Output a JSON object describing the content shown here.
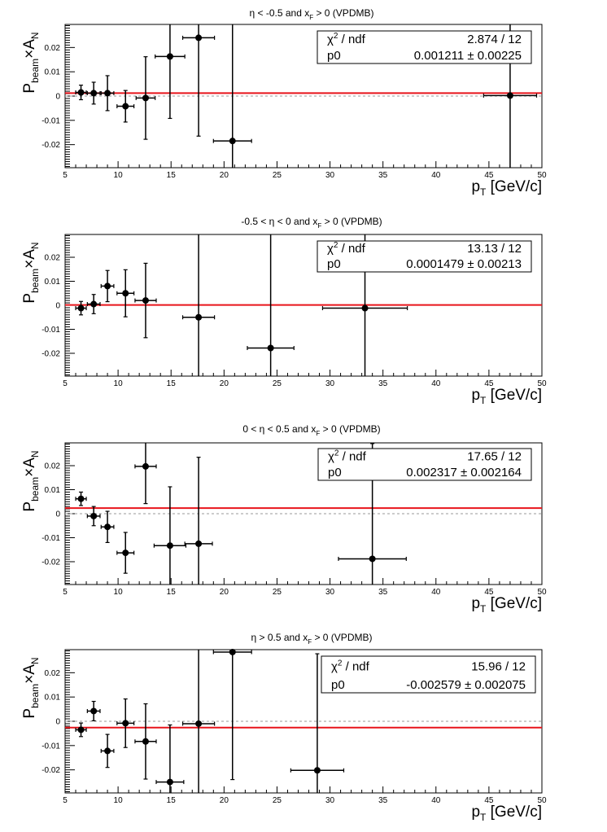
{
  "chart_data": [
    {
      "type": "scatter",
      "title": "η < -0.5 and x_F > 0 (VPDMB)",
      "title_parts": {
        "pre": "η < -0.5 and x",
        "sub": "F",
        "post": " > 0 (VPDMB)"
      },
      "xlabel": {
        "main": "p",
        "sub": "T",
        "unit": " [GeV/c]"
      },
      "ylabel": {
        "p1": "P",
        "s1": "beam",
        "p2": "×A",
        "s2": "N"
      },
      "xlim": [
        5,
        50
      ],
      "ylim": [
        -0.0295,
        0.0295
      ],
      "xticks": [
        5,
        10,
        15,
        20,
        25,
        30,
        35,
        40,
        45,
        50
      ],
      "xtick_labels": [
        "5",
        "10",
        "15",
        "20",
        "25",
        "30",
        "35",
        "40",
        "45",
        "50"
      ],
      "yticks": [
        -0.02,
        -0.01,
        0,
        0.01,
        0.02
      ],
      "ytick_labels": [
        "-0.02",
        "-0.01",
        "0",
        "0.01",
        "0.02"
      ],
      "points": [
        {
          "x": 6.5,
          "y": 0.0015,
          "xerr": 0.5,
          "yerr": 0.003
        },
        {
          "x": 7.7,
          "y": 0.0012,
          "xerr": 0.6,
          "yerr": 0.0045
        },
        {
          "x": 9.0,
          "y": 0.0012,
          "xerr": 0.6,
          "yerr": 0.0072
        },
        {
          "x": 10.7,
          "y": -0.0042,
          "xerr": 0.8,
          "yerr": 0.0065
        },
        {
          "x": 12.6,
          "y": -0.0008,
          "xerr": 0.9,
          "yerr": 0.017
        },
        {
          "x": 14.9,
          "y": 0.0163,
          "xerr": 1.4,
          "yerr": 0.0255
        },
        {
          "x": 17.6,
          "y": 0.024,
          "xerr": 1.5,
          "yerr": 0.0405
        },
        {
          "x": 20.8,
          "y": -0.0185,
          "xerr": 1.8,
          "yerr": 0.048
        },
        {
          "x": 47.0,
          "y": 0.0002,
          "xerr": 2.5,
          "yerr": 0.048
        }
      ],
      "fit_value": 0.001211,
      "stats": {
        "chi_label": "χ",
        "chi_sup": "2",
        "ndf_label": " / ndf",
        "chi_value": "2.874 / 12",
        "p_label": "p0",
        "p_value": "0.001211 ± 0.00225"
      },
      "line_color": "#e8141b",
      "zero_line_color": "#9a9a9a",
      "stat_box_position": "top-right"
    },
    {
      "type": "scatter",
      "title": "-0.5 < η < 0 and x_F > 0 (VPDMB)",
      "title_parts": {
        "pre": "-0.5 < η < 0 and x",
        "sub": "F",
        "post": " > 0 (VPDMB)"
      },
      "xlabel": {
        "main": "p",
        "sub": "T",
        "unit": " [GeV/c]"
      },
      "ylabel": {
        "p1": "P",
        "s1": "beam",
        "p2": "×A",
        "s2": "N"
      },
      "xlim": [
        5,
        50
      ],
      "ylim": [
        -0.0295,
        0.0295
      ],
      "xticks": [
        5,
        10,
        15,
        20,
        25,
        30,
        35,
        40,
        45,
        50
      ],
      "xtick_labels": [
        "5",
        "10",
        "15",
        "20",
        "25",
        "30",
        "35",
        "40",
        "45",
        "50"
      ],
      "yticks": [
        -0.02,
        -0.01,
        0,
        0.01,
        0.02
      ],
      "ytick_labels": [
        "-0.02",
        "-0.01",
        "0",
        "0.01",
        "0.02"
      ],
      "points": [
        {
          "x": 6.5,
          "y": -0.0012,
          "xerr": 0.5,
          "yerr": 0.0028
        },
        {
          "x": 7.7,
          "y": 0.0005,
          "xerr": 0.6,
          "yerr": 0.004
        },
        {
          "x": 9.0,
          "y": 0.008,
          "xerr": 0.6,
          "yerr": 0.0065
        },
        {
          "x": 10.7,
          "y": 0.005,
          "xerr": 0.8,
          "yerr": 0.0098
        },
        {
          "x": 12.6,
          "y": 0.002,
          "xerr": 1.0,
          "yerr": 0.0155
        },
        {
          "x": 17.6,
          "y": -0.005,
          "xerr": 1.5,
          "yerr": 0.048
        },
        {
          "x": 24.4,
          "y": -0.0178,
          "xerr": 2.2,
          "yerr": 0.048
        },
        {
          "x": 33.3,
          "y": -0.0012,
          "xerr": 4.0,
          "yerr": 0.048
        }
      ],
      "fit_value": 0.0001479,
      "stats": {
        "chi_label": "χ",
        "chi_sup": "2",
        "ndf_label": " / ndf",
        "chi_value": "13.13 / 12",
        "p_label": "p0",
        "p_value": "0.0001479 ± 0.00213"
      },
      "line_color": "#e8141b",
      "zero_line_color": "#9a9a9a",
      "stat_box_position": "top-right"
    },
    {
      "type": "scatter",
      "title": "0 < η < 0.5 and x_F > 0 (VPDMB)",
      "title_parts": {
        "pre": "0 < η < 0.5 and x",
        "sub": "F",
        "post": " > 0 (VPDMB)"
      },
      "xlabel": {
        "main": "p",
        "sub": "T",
        "unit": " [GeV/c]"
      },
      "ylabel": {
        "p1": "P",
        "s1": "beam",
        "p2": "×A",
        "s2": "N"
      },
      "xlim": [
        5,
        50
      ],
      "ylim": [
        -0.0295,
        0.0295
      ],
      "xticks": [
        5,
        10,
        15,
        20,
        25,
        30,
        35,
        40,
        45,
        50
      ],
      "xtick_labels": [
        "5",
        "10",
        "15",
        "20",
        "25",
        "30",
        "35",
        "40",
        "45",
        "50"
      ],
      "yticks": [
        -0.02,
        -0.01,
        0,
        0.01,
        0.02
      ],
      "ytick_labels": [
        "-0.02",
        "-0.01",
        "0",
        "0.01",
        "0.02"
      ],
      "points": [
        {
          "x": 6.5,
          "y": 0.0062,
          "xerr": 0.5,
          "yerr": 0.0028
        },
        {
          "x": 7.7,
          "y": -0.001,
          "xerr": 0.6,
          "yerr": 0.004
        },
        {
          "x": 9.0,
          "y": -0.0055,
          "xerr": 0.6,
          "yerr": 0.0065
        },
        {
          "x": 10.7,
          "y": -0.0163,
          "xerr": 0.8,
          "yerr": 0.0085
        },
        {
          "x": 12.6,
          "y": 0.0197,
          "xerr": 1.0,
          "yerr": 0.0155
        },
        {
          "x": 14.9,
          "y": -0.0133,
          "xerr": 1.5,
          "yerr": 0.0245
        },
        {
          "x": 17.6,
          "y": -0.0125,
          "xerr": 1.3,
          "yerr": 0.036
        },
        {
          "x": 34.0,
          "y": -0.0188,
          "xerr": 3.2,
          "yerr": 0.048
        }
      ],
      "fit_value": 0.002317,
      "stats": {
        "chi_label": "χ",
        "chi_sup": "2",
        "ndf_label": " / ndf",
        "chi_value": "17.65 / 12",
        "p_label": "p0",
        "p_value": "0.002317 ± 0.002164"
      },
      "line_color": "#e8141b",
      "zero_line_color": "#9a9a9a",
      "stat_box_position": "top-right"
    },
    {
      "type": "scatter",
      "title": "η > 0.5 and x_F > 0 (VPDMB)",
      "title_parts": {
        "pre": "η > 0.5 and x",
        "sub": "F",
        "post": " > 0 (VPDMB)"
      },
      "xlabel": {
        "main": "p",
        "sub": "T",
        "unit": " [GeV/c]"
      },
      "ylabel": {
        "p1": "P",
        "s1": "beam",
        "p2": "×A",
        "s2": "N"
      },
      "xlim": [
        5,
        50
      ],
      "ylim": [
        -0.0295,
        0.0295
      ],
      "xticks": [
        5,
        10,
        15,
        20,
        25,
        30,
        35,
        40,
        45,
        50
      ],
      "xtick_labels": [
        "5",
        "10",
        "15",
        "20",
        "25",
        "30",
        "35",
        "40",
        "45",
        "50"
      ],
      "yticks": [
        -0.02,
        -0.01,
        0,
        0.01,
        0.02
      ],
      "ytick_labels": [
        "-0.02",
        "-0.01",
        "0",
        "0.01",
        "0.02"
      ],
      "points": [
        {
          "x": 6.5,
          "y": -0.0035,
          "xerr": 0.5,
          "yerr": 0.0028
        },
        {
          "x": 7.7,
          "y": 0.0042,
          "xerr": 0.6,
          "yerr": 0.004
        },
        {
          "x": 9.0,
          "y": -0.0122,
          "xerr": 0.6,
          "yerr": 0.0068
        },
        {
          "x": 10.7,
          "y": -0.0008,
          "xerr": 0.8,
          "yerr": 0.01
        },
        {
          "x": 12.6,
          "y": -0.0083,
          "xerr": 1.0,
          "yerr": 0.0155
        },
        {
          "x": 14.9,
          "y": -0.025,
          "xerr": 1.3,
          "yerr": 0.0235
        },
        {
          "x": 17.6,
          "y": -0.001,
          "xerr": 1.5,
          "yerr": 0.048
        },
        {
          "x": 20.8,
          "y": 0.0285,
          "xerr": 1.8,
          "yerr": 0.0525
        },
        {
          "x": 28.8,
          "y": -0.0202,
          "xerr": 2.5,
          "yerr": 0.048
        }
      ],
      "fit_value": -0.002579,
      "stats": {
        "chi_label": "χ",
        "chi_sup": "2",
        "ndf_label": " / ndf",
        "chi_value": "15.96 / 12",
        "p_label": "p0",
        "p_value": "-0.002579 ± 0.002075"
      },
      "line_color": "#e8141b",
      "zero_line_color": "#9a9a9a",
      "stat_box_position": "top-right"
    }
  ]
}
